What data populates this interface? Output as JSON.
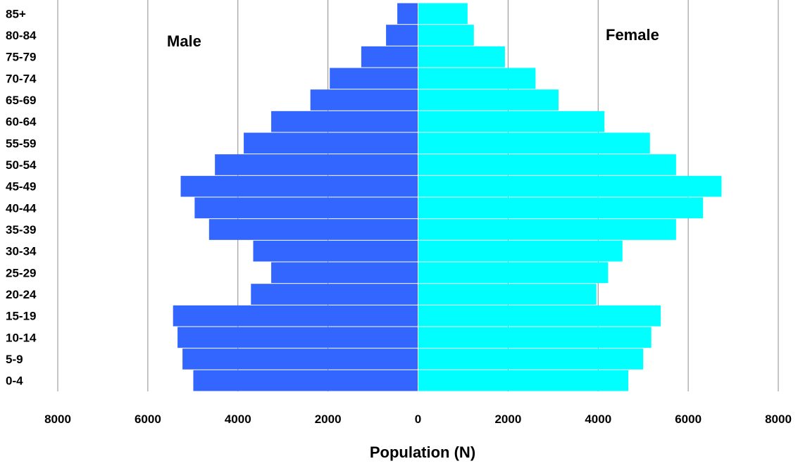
{
  "chart_data": {
    "type": "bar",
    "orientation": "horizontal-population-pyramid",
    "title": "",
    "xlabel": "Population (N)",
    "ylabel": "",
    "categories": [
      "0-4",
      "5-9",
      "10-14",
      "15-19",
      "20-24",
      "25-29",
      "30-34",
      "35-39",
      "40-44",
      "45-49",
      "50-54",
      "55-59",
      "60-64",
      "65-69",
      "70-74",
      "75-79",
      "80-84",
      "85+"
    ],
    "series": [
      {
        "name": "Male",
        "color": "#3366ff",
        "values": [
          4990,
          5230,
          5340,
          5440,
          3710,
          3260,
          3660,
          4640,
          4960,
          5270,
          4510,
          3870,
          3260,
          2390,
          1960,
          1260,
          710,
          460
        ]
      },
      {
        "name": "Female",
        "color": "#00ffff",
        "values": [
          4670,
          5000,
          5180,
          5390,
          3960,
          4220,
          4540,
          5730,
          6330,
          6740,
          5730,
          5150,
          4140,
          3120,
          2610,
          1930,
          1240,
          1100
        ]
      }
    ],
    "xlim": [
      -8000,
      8000
    ],
    "xticks": [
      "8000",
      "6000",
      "4000",
      "2000",
      "0",
      "2000",
      "4000",
      "6000",
      "8000"
    ],
    "grid": "vertical",
    "legend": "in-plot labels (Male upper-left, Female upper-right)"
  }
}
